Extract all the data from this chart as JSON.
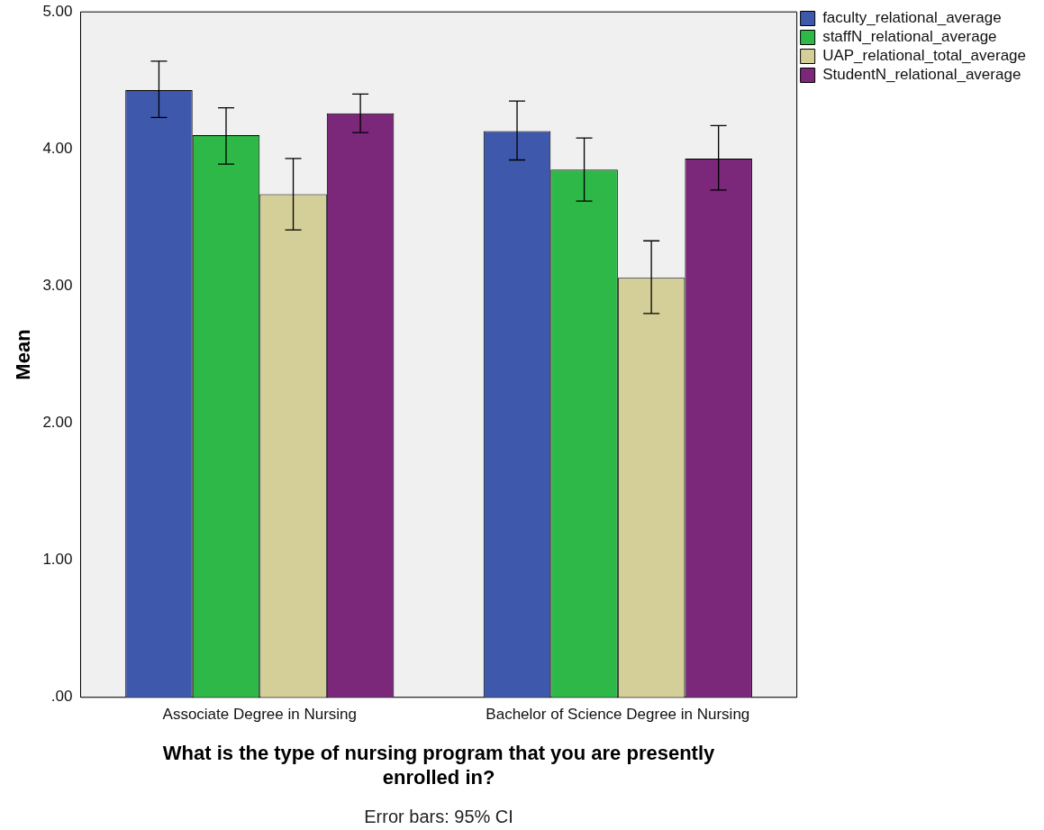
{
  "chart_data": {
    "type": "bar",
    "categories": [
      "Associate Degree in Nursing",
      "Bachelor of Science Degree in Nursing"
    ],
    "series": [
      {
        "name": "faculty_relational_average",
        "color": "#3e58ac",
        "values": [
          4.43,
          4.13
        ],
        "errors": [
          [
            4.23,
            4.64
          ],
          [
            3.92,
            4.35
          ]
        ]
      },
      {
        "name": "staffN_relational_average",
        "color": "#2eb848",
        "values": [
          4.1,
          3.85
        ],
        "errors": [
          [
            3.89,
            4.3
          ],
          [
            3.62,
            4.08
          ]
        ]
      },
      {
        "name": "UAP_relational_total_average",
        "color": "#d4cf98",
        "values": [
          3.67,
          3.06
        ],
        "errors": [
          [
            3.41,
            3.93
          ],
          [
            2.8,
            3.33
          ]
        ]
      },
      {
        "name": "StudentN_relational_average",
        "color": "#7b277a",
        "values": [
          4.26,
          3.93
        ],
        "errors": [
          [
            4.12,
            4.4
          ],
          [
            3.7,
            4.17
          ]
        ]
      }
    ],
    "xlabel": "What is the type of nursing program that you are presently enrolled in?",
    "ylabel": "Mean",
    "ylim": [
      0,
      5
    ],
    "yticks": [
      {
        "value": 0,
        "label": ".00"
      },
      {
        "value": 1,
        "label": "1.00"
      },
      {
        "value": 2,
        "label": "2.00"
      },
      {
        "value": 3,
        "label": "3.00"
      },
      {
        "value": 4,
        "label": "4.00"
      },
      {
        "value": 5,
        "label": "5.00"
      }
    ],
    "annotations": [
      "Error bars: 95% CI"
    ],
    "legend": "top right",
    "grid": false
  }
}
